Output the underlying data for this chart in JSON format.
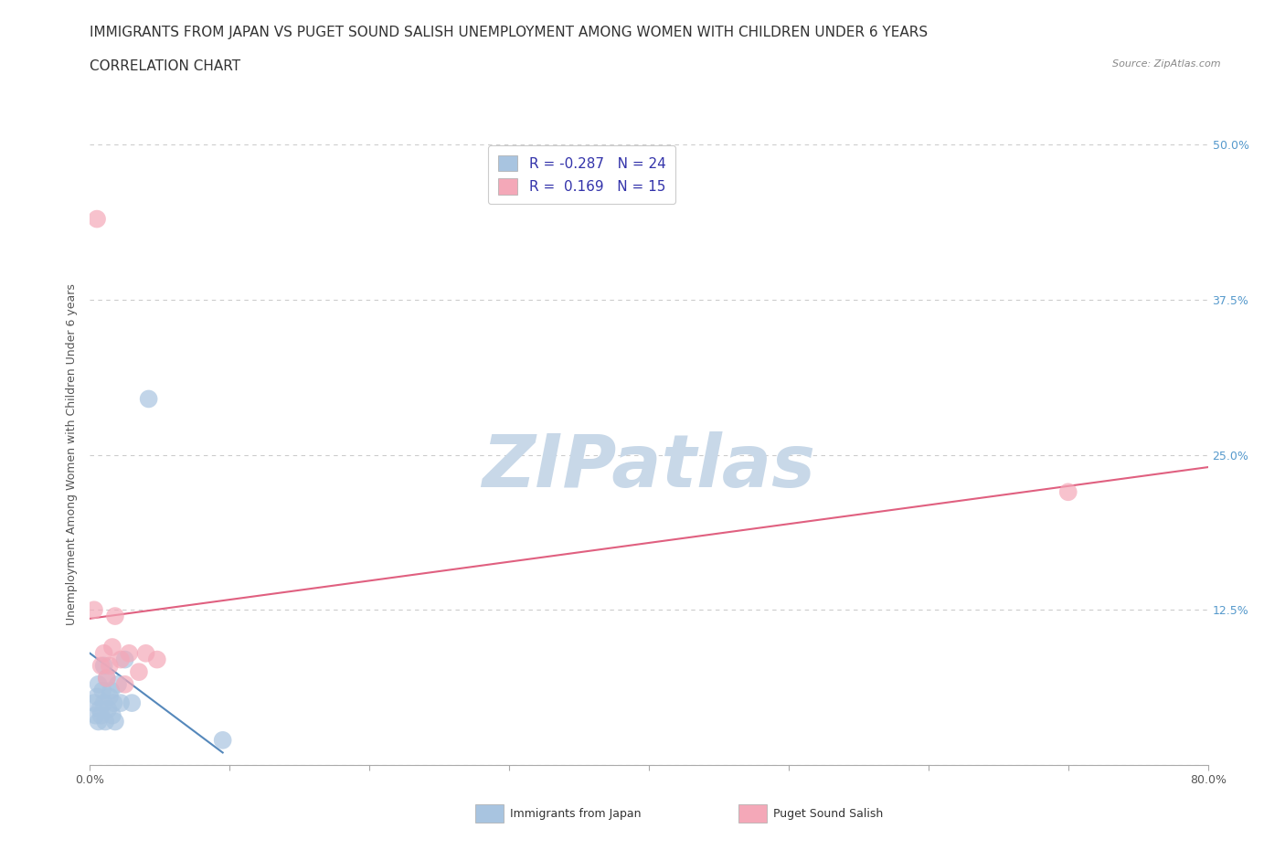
{
  "title_line1": "IMMIGRANTS FROM JAPAN VS PUGET SOUND SALISH UNEMPLOYMENT AMONG WOMEN WITH CHILDREN UNDER 6 YEARS",
  "title_line2": "CORRELATION CHART",
  "source": "Source: ZipAtlas.com",
  "ylabel": "Unemployment Among Women with Children Under 6 years",
  "xlim": [
    0,
    0.8
  ],
  "ylim": [
    0,
    0.5
  ],
  "xticks": [
    0.0,
    0.1,
    0.2,
    0.3,
    0.4,
    0.5,
    0.6,
    0.7,
    0.8
  ],
  "yticks": [
    0.0,
    0.125,
    0.25,
    0.375,
    0.5
  ],
  "japan_scatter_x": [
    0.003,
    0.004,
    0.005,
    0.006,
    0.006,
    0.007,
    0.008,
    0.009,
    0.01,
    0.01,
    0.011,
    0.012,
    0.013,
    0.014,
    0.015,
    0.016,
    0.017,
    0.018,
    0.02,
    0.022,
    0.025,
    0.03,
    0.042,
    0.095
  ],
  "japan_scatter_y": [
    0.05,
    0.04,
    0.055,
    0.035,
    0.065,
    0.045,
    0.04,
    0.06,
    0.05,
    0.08,
    0.035,
    0.07,
    0.045,
    0.055,
    0.06,
    0.04,
    0.05,
    0.035,
    0.065,
    0.05,
    0.085,
    0.05,
    0.295,
    0.02
  ],
  "salish_scatter_x": [
    0.003,
    0.005,
    0.008,
    0.01,
    0.012,
    0.014,
    0.016,
    0.018,
    0.022,
    0.025,
    0.028,
    0.035,
    0.04,
    0.048,
    0.7
  ],
  "salish_scatter_y": [
    0.125,
    0.44,
    0.08,
    0.09,
    0.07,
    0.08,
    0.095,
    0.12,
    0.085,
    0.065,
    0.09,
    0.075,
    0.09,
    0.085,
    0.22
  ],
  "japan_color": "#a8c4e0",
  "salish_color": "#f4a8b8",
  "japan_R": -0.287,
  "japan_N": 24,
  "salish_R": 0.169,
  "salish_N": 15,
  "japan_trend_x": [
    0.0,
    0.095
  ],
  "japan_trend_y_start": 0.09,
  "japan_trend_y_end": 0.01,
  "salish_trend_x": [
    0.0,
    0.8
  ],
  "salish_trend_y_start": 0.118,
  "salish_trend_y_end": 0.24,
  "background_color": "#ffffff",
  "grid_color": "#cccccc",
  "watermark_color": "#c8d8e8",
  "title_fontsize": 11,
  "subtitle_fontsize": 11,
  "axis_label_fontsize": 9,
  "tick_fontsize": 9,
  "legend_fontsize": 11,
  "right_tick_color": "#5599cc"
}
